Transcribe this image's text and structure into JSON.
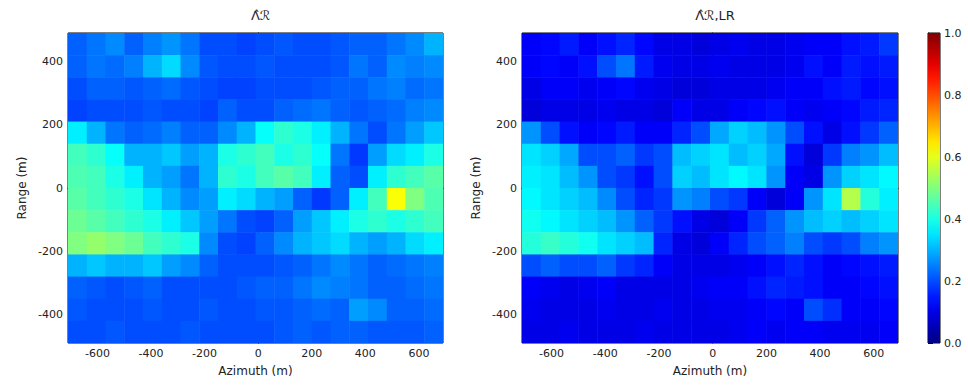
{
  "chart_data": [
    {
      "type": "heatmap",
      "title": "Λ̂ℛ",
      "x_label": "Azimuth (m)",
      "y_label": "Range (m)",
      "color": "jet",
      "xlim": [
        -710,
        690
      ],
      "xticks": [
        -600,
        -400,
        -200,
        0,
        200,
        400,
        600
      ],
      "ylim": [
        -490,
        490
      ],
      "yticks": [
        -400,
        -200,
        0,
        200,
        400
      ],
      "x": [
        -675,
        -605,
        -535,
        -465,
        -395,
        -325,
        -255,
        -185,
        -115,
        -45,
        25,
        95,
        165,
        235,
        305,
        375,
        445,
        515,
        585,
        655
      ],
      "y": [
        455,
        385,
        315,
        245,
        175,
        105,
        35,
        -35,
        -105,
        -175,
        -245,
        -315,
        -385,
        -455
      ],
      "values": [
        [
          0.22,
          0.24,
          0.26,
          0.22,
          0.25,
          0.27,
          0.24,
          0.2,
          0.2,
          0.19,
          0.2,
          0.21,
          0.2,
          0.2,
          0.21,
          0.22,
          0.22,
          0.24,
          0.26,
          0.3
        ],
        [
          0.22,
          0.24,
          0.23,
          0.25,
          0.3,
          0.34,
          0.26,
          0.21,
          0.2,
          0.2,
          0.21,
          0.2,
          0.2,
          0.2,
          0.21,
          0.24,
          0.22,
          0.26,
          0.25,
          0.26
        ],
        [
          0.2,
          0.22,
          0.22,
          0.21,
          0.22,
          0.23,
          0.21,
          0.2,
          0.19,
          0.19,
          0.2,
          0.2,
          0.2,
          0.21,
          0.22,
          0.22,
          0.24,
          0.25,
          0.23,
          0.24
        ],
        [
          0.19,
          0.2,
          0.2,
          0.2,
          0.21,
          0.2,
          0.2,
          0.19,
          0.22,
          0.2,
          0.2,
          0.22,
          0.23,
          0.24,
          0.22,
          0.21,
          0.22,
          0.23,
          0.25,
          0.26
        ],
        [
          0.36,
          0.3,
          0.24,
          0.22,
          0.23,
          0.25,
          0.22,
          0.22,
          0.26,
          0.3,
          0.38,
          0.42,
          0.4,
          0.36,
          0.3,
          0.24,
          0.2,
          0.24,
          0.28,
          0.32
        ],
        [
          0.44,
          0.42,
          0.38,
          0.3,
          0.3,
          0.32,
          0.28,
          0.3,
          0.4,
          0.42,
          0.44,
          0.4,
          0.42,
          0.38,
          0.24,
          0.18,
          0.28,
          0.34,
          0.36,
          0.4
        ],
        [
          0.45,
          0.44,
          0.4,
          0.36,
          0.3,
          0.28,
          0.24,
          0.3,
          0.42,
          0.4,
          0.44,
          0.46,
          0.44,
          0.36,
          0.22,
          0.2,
          0.36,
          0.42,
          0.44,
          0.46
        ],
        [
          0.46,
          0.44,
          0.42,
          0.4,
          0.35,
          0.3,
          0.26,
          0.28,
          0.36,
          0.34,
          0.3,
          0.28,
          0.22,
          0.18,
          0.22,
          0.36,
          0.44,
          0.62,
          0.5,
          0.45
        ],
        [
          0.48,
          0.46,
          0.44,
          0.42,
          0.4,
          0.36,
          0.32,
          0.28,
          0.24,
          0.2,
          0.19,
          0.22,
          0.28,
          0.32,
          0.36,
          0.4,
          0.42,
          0.4,
          0.42,
          0.44
        ],
        [
          0.5,
          0.52,
          0.5,
          0.48,
          0.44,
          0.42,
          0.4,
          0.26,
          0.2,
          0.19,
          0.22,
          0.26,
          0.3,
          0.32,
          0.34,
          0.3,
          0.28,
          0.3,
          0.34,
          0.36
        ],
        [
          0.3,
          0.32,
          0.3,
          0.3,
          0.32,
          0.28,
          0.26,
          0.22,
          0.2,
          0.2,
          0.2,
          0.21,
          0.22,
          0.24,
          0.26,
          0.24,
          0.22,
          0.23,
          0.24,
          0.25
        ],
        [
          0.22,
          0.21,
          0.2,
          0.21,
          0.22,
          0.2,
          0.2,
          0.2,
          0.2,
          0.21,
          0.22,
          0.22,
          0.24,
          0.26,
          0.25,
          0.24,
          0.22,
          0.22,
          0.23,
          0.24
        ],
        [
          0.21,
          0.2,
          0.2,
          0.2,
          0.21,
          0.2,
          0.2,
          0.21,
          0.2,
          0.2,
          0.21,
          0.21,
          0.22,
          0.23,
          0.22,
          0.28,
          0.26,
          0.22,
          0.22,
          0.23
        ],
        [
          0.2,
          0.2,
          0.21,
          0.2,
          0.2,
          0.2,
          0.21,
          0.2,
          0.2,
          0.2,
          0.2,
          0.21,
          0.22,
          0.21,
          0.22,
          0.22,
          0.21,
          0.21,
          0.21,
          0.22
        ]
      ]
    },
    {
      "type": "heatmap",
      "title": "Λ̂ℛ,LR",
      "x_label": "Azimuth (m)",
      "y_label": "Range (m)",
      "color": "jet",
      "xlim": [
        -710,
        690
      ],
      "xticks": [
        -600,
        -400,
        -200,
        0,
        200,
        400,
        600
      ],
      "ylim": [
        -490,
        490
      ],
      "yticks": [
        -400,
        -200,
        0,
        200,
        400
      ],
      "x": [
        -675,
        -605,
        -535,
        -465,
        -395,
        -325,
        -255,
        -185,
        -115,
        -45,
        25,
        95,
        165,
        235,
        305,
        375,
        445,
        515,
        585,
        655
      ],
      "y": [
        455,
        385,
        315,
        245,
        175,
        105,
        35,
        -35,
        -105,
        -175,
        -245,
        -315,
        -385,
        -455
      ],
      "values": [
        [
          0.12,
          0.13,
          0.15,
          0.12,
          0.14,
          0.16,
          0.13,
          0.1,
          0.1,
          0.09,
          0.1,
          0.11,
          0.1,
          0.1,
          0.11,
          0.12,
          0.12,
          0.14,
          0.15,
          0.18
        ],
        [
          0.12,
          0.13,
          0.12,
          0.14,
          0.2,
          0.24,
          0.15,
          0.11,
          0.1,
          0.1,
          0.11,
          0.1,
          0.1,
          0.1,
          0.11,
          0.14,
          0.12,
          0.15,
          0.14,
          0.15
        ],
        [
          0.1,
          0.12,
          0.12,
          0.11,
          0.12,
          0.13,
          0.11,
          0.1,
          0.09,
          0.09,
          0.1,
          0.1,
          0.1,
          0.11,
          0.12,
          0.12,
          0.14,
          0.15,
          0.13,
          0.14
        ],
        [
          0.09,
          0.1,
          0.1,
          0.1,
          0.11,
          0.1,
          0.1,
          0.09,
          0.12,
          0.1,
          0.1,
          0.12,
          0.13,
          0.14,
          0.12,
          0.11,
          0.12,
          0.13,
          0.15,
          0.16
        ],
        [
          0.27,
          0.2,
          0.14,
          0.12,
          0.13,
          0.15,
          0.12,
          0.12,
          0.16,
          0.2,
          0.29,
          0.33,
          0.31,
          0.27,
          0.2,
          0.14,
          0.1,
          0.14,
          0.18,
          0.22
        ],
        [
          0.35,
          0.33,
          0.29,
          0.2,
          0.2,
          0.22,
          0.18,
          0.2,
          0.31,
          0.33,
          0.35,
          0.31,
          0.33,
          0.29,
          0.14,
          0.09,
          0.18,
          0.25,
          0.27,
          0.31
        ],
        [
          0.36,
          0.35,
          0.31,
          0.27,
          0.2,
          0.18,
          0.14,
          0.2,
          0.33,
          0.31,
          0.35,
          0.37,
          0.35,
          0.27,
          0.12,
          0.1,
          0.27,
          0.33,
          0.35,
          0.37
        ],
        [
          0.37,
          0.35,
          0.33,
          0.31,
          0.26,
          0.2,
          0.16,
          0.18,
          0.27,
          0.25,
          0.2,
          0.18,
          0.12,
          0.09,
          0.12,
          0.27,
          0.35,
          0.55,
          0.41,
          0.36
        ],
        [
          0.39,
          0.37,
          0.35,
          0.33,
          0.31,
          0.27,
          0.22,
          0.18,
          0.14,
          0.1,
          0.09,
          0.12,
          0.18,
          0.22,
          0.27,
          0.31,
          0.33,
          0.31,
          0.33,
          0.35
        ],
        [
          0.41,
          0.43,
          0.41,
          0.39,
          0.35,
          0.33,
          0.31,
          0.16,
          0.1,
          0.09,
          0.12,
          0.16,
          0.2,
          0.22,
          0.25,
          0.2,
          0.18,
          0.2,
          0.25,
          0.27
        ],
        [
          0.2,
          0.22,
          0.2,
          0.2,
          0.22,
          0.18,
          0.16,
          0.12,
          0.1,
          0.1,
          0.1,
          0.11,
          0.12,
          0.14,
          0.16,
          0.14,
          0.12,
          0.13,
          0.14,
          0.15
        ],
        [
          0.12,
          0.11,
          0.1,
          0.11,
          0.12,
          0.1,
          0.1,
          0.1,
          0.1,
          0.11,
          0.12,
          0.12,
          0.14,
          0.16,
          0.15,
          0.14,
          0.12,
          0.12,
          0.13,
          0.14
        ],
        [
          0.11,
          0.1,
          0.1,
          0.1,
          0.11,
          0.1,
          0.1,
          0.11,
          0.1,
          0.1,
          0.11,
          0.11,
          0.12,
          0.13,
          0.12,
          0.2,
          0.17,
          0.12,
          0.12,
          0.13
        ],
        [
          0.1,
          0.1,
          0.11,
          0.1,
          0.1,
          0.1,
          0.11,
          0.1,
          0.1,
          0.1,
          0.1,
          0.11,
          0.12,
          0.11,
          0.12,
          0.12,
          0.11,
          0.11,
          0.11,
          0.12
        ]
      ],
      "colorbar": {
        "range": [
          0,
          1
        ],
        "ticks": [
          {
            "value": 0,
            "label": "0.0"
          },
          {
            "value": 0.2,
            "label": "0.2"
          },
          {
            "value": 0.4,
            "label": "0.4"
          },
          {
            "value": 0.6,
            "label": "0.6"
          },
          {
            "value": 0.8,
            "label": "0.8"
          },
          {
            "value": 1,
            "label": "1.0"
          }
        ]
      }
    }
  ]
}
